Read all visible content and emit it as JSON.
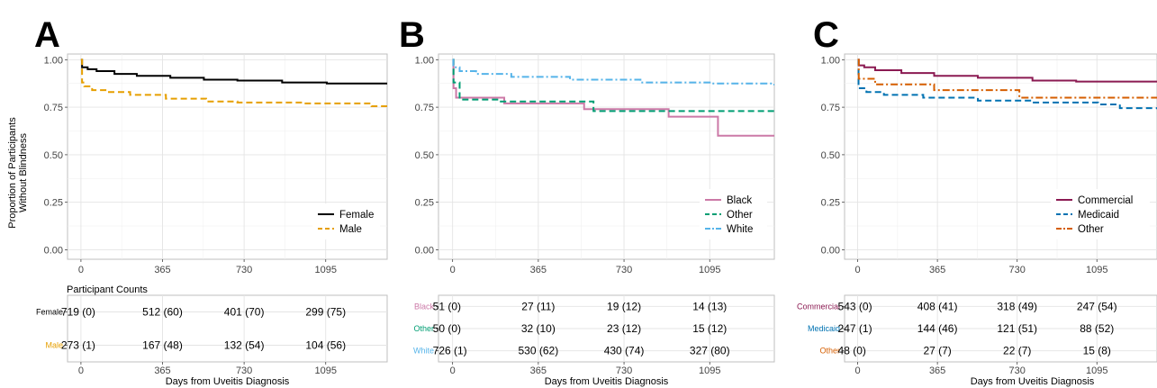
{
  "y_axis_title": [
    "Proportion of Participants",
    "Without Blindness"
  ],
  "x_axis_title": "Days from Uveitis Diagnosis",
  "counts_title": "Participant Counts",
  "chart_data": [
    {
      "panel": "A",
      "type": "line",
      "step": true,
      "x_ticks": [
        0,
        365,
        730,
        1095
      ],
      "y_ticks": [
        "0.00",
        "0.25",
        "0.50",
        "0.75",
        "1.00"
      ],
      "xlim": [
        -60,
        1370
      ],
      "ylim": [
        -0.05,
        1.03
      ],
      "legend_position": "bottom-right",
      "series": [
        {
          "name": "Female",
          "color": "#000000",
          "dash": "solid",
          "x": [
            0,
            5,
            30,
            70,
            150,
            250,
            400,
            550,
            700,
            900,
            1100,
            1370
          ],
          "y": [
            1.0,
            0.96,
            0.95,
            0.94,
            0.925,
            0.915,
            0.905,
            0.895,
            0.89,
            0.88,
            0.875,
            0.87
          ]
        },
        {
          "name": "Male",
          "color": "#E69F00",
          "dash": "dashed",
          "x": [
            0,
            5,
            15,
            50,
            120,
            220,
            380,
            560,
            700,
            1000,
            1300,
            1370
          ],
          "y": [
            1.0,
            0.88,
            0.86,
            0.84,
            0.83,
            0.815,
            0.795,
            0.78,
            0.775,
            0.77,
            0.755,
            0.75
          ]
        }
      ],
      "risk_table": {
        "rows": [
          "Female",
          "Male"
        ],
        "values": [
          [
            "719 (0)",
            "512 (60)",
            "401 (70)",
            "299 (75)"
          ],
          [
            "273 (1)",
            "167 (48)",
            "132 (54)",
            "104 (56)"
          ]
        ]
      }
    },
    {
      "panel": "B",
      "type": "line",
      "step": true,
      "x_ticks": [
        0,
        365,
        730,
        1095
      ],
      "y_ticks": [
        "0.00",
        "0.25",
        "0.50",
        "0.75",
        "1.00"
      ],
      "xlim": [
        -60,
        1370
      ],
      "ylim": [
        -0.05,
        1.03
      ],
      "legend_position": "bottom-right",
      "series": [
        {
          "name": "Black",
          "color": "#CC79A7",
          "dash": "solid",
          "x": [
            0,
            4,
            15,
            220,
            560,
            920,
            1130,
            1370
          ],
          "y": [
            1.0,
            0.85,
            0.8,
            0.77,
            0.74,
            0.7,
            0.6,
            0.6
          ]
        },
        {
          "name": "Other",
          "color": "#009E73",
          "dash": "dashed",
          "x": [
            0,
            4,
            30,
            200,
            600,
            1370
          ],
          "y": [
            1.0,
            0.88,
            0.79,
            0.78,
            0.73,
            0.73
          ]
        },
        {
          "name": "White",
          "color": "#56B4E9",
          "dash": "dashdot",
          "x": [
            0,
            3,
            30,
            100,
            250,
            500,
            800,
            1100,
            1370
          ],
          "y": [
            1.0,
            0.96,
            0.94,
            0.925,
            0.91,
            0.895,
            0.88,
            0.875,
            0.865
          ]
        }
      ],
      "risk_table": {
        "rows": [
          "Black",
          "Other",
          "White"
        ],
        "values": [
          [
            "51 (0)",
            "27 (11)",
            "19 (12)",
            "14 (13)"
          ],
          [
            "50 (0)",
            "32 (10)",
            "23 (12)",
            "15 (12)"
          ],
          [
            "726 (1)",
            "530 (62)",
            "430 (74)",
            "327 (80)"
          ]
        ]
      }
    },
    {
      "panel": "C",
      "type": "line",
      "step": true,
      "x_ticks": [
        0,
        365,
        730,
        1095
      ],
      "y_ticks": [
        "0.00",
        "0.25",
        "0.50",
        "0.75",
        "1.00"
      ],
      "xlim": [
        -60,
        1370
      ],
      "ylim": [
        -0.05,
        1.03
      ],
      "legend_position": "bottom-right",
      "series": [
        {
          "name": "Commercial",
          "color": "#8B1A52",
          "dash": "solid",
          "x": [
            0,
            5,
            30,
            80,
            200,
            350,
            550,
            800,
            1000,
            1370
          ],
          "y": [
            1.0,
            0.97,
            0.96,
            0.945,
            0.93,
            0.915,
            0.905,
            0.89,
            0.885,
            0.88
          ]
        },
        {
          "name": "Medicaid",
          "color": "#0072B2",
          "dash": "dashed",
          "x": [
            0,
            4,
            40,
            120,
            300,
            550,
            800,
            1100,
            1200,
            1370
          ],
          "y": [
            1.0,
            0.85,
            0.83,
            0.815,
            0.8,
            0.785,
            0.775,
            0.765,
            0.745,
            0.74
          ]
        },
        {
          "name": "Other",
          "color": "#D55E00",
          "dash": "dashdot",
          "x": [
            0,
            5,
            80,
            350,
            730,
            740,
            1370
          ],
          "y": [
            1.0,
            0.9,
            0.87,
            0.84,
            0.84,
            0.8,
            0.8
          ]
        }
      ],
      "risk_table": {
        "rows": [
          "Commercial",
          "Medicaid",
          "Other"
        ],
        "values": [
          [
            "543 (0)",
            "408 (41)",
            "318 (49)",
            "247 (54)"
          ],
          [
            "247 (1)",
            "144 (46)",
            "121 (51)",
            "88 (52)"
          ],
          [
            "48 (0)",
            "27 (7)",
            "22 (7)",
            "15 (8)"
          ]
        ]
      }
    }
  ]
}
